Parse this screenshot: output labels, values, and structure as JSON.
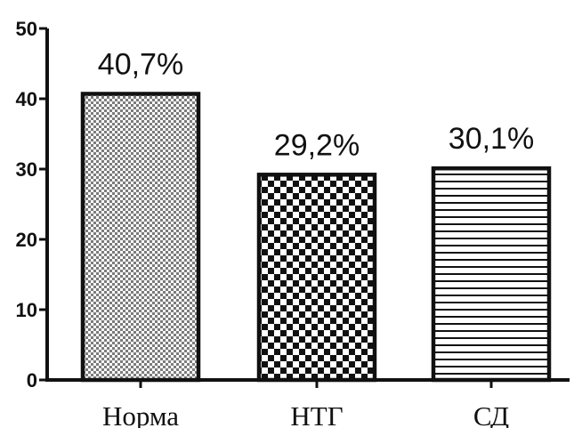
{
  "chart_data": {
    "type": "bar",
    "title": "",
    "xlabel": "",
    "ylabel": "",
    "ylim": [
      0,
      50
    ],
    "yticks": [
      0,
      10,
      20,
      30,
      40,
      50
    ],
    "grid": false,
    "legend": "none",
    "categories": [
      "Норма",
      "НТГ",
      "СД"
    ],
    "values": [
      40.7,
      29.2,
      30.1
    ],
    "data_labels": [
      "40,7%",
      "29,2%",
      "30,1%"
    ],
    "fill_patterns": [
      "fine-checker",
      "checkerboard",
      "horizontal-stripes"
    ],
    "colors": {
      "ink": "#111111",
      "background": "#ffffff",
      "pattern_fill": "#111111"
    }
  }
}
